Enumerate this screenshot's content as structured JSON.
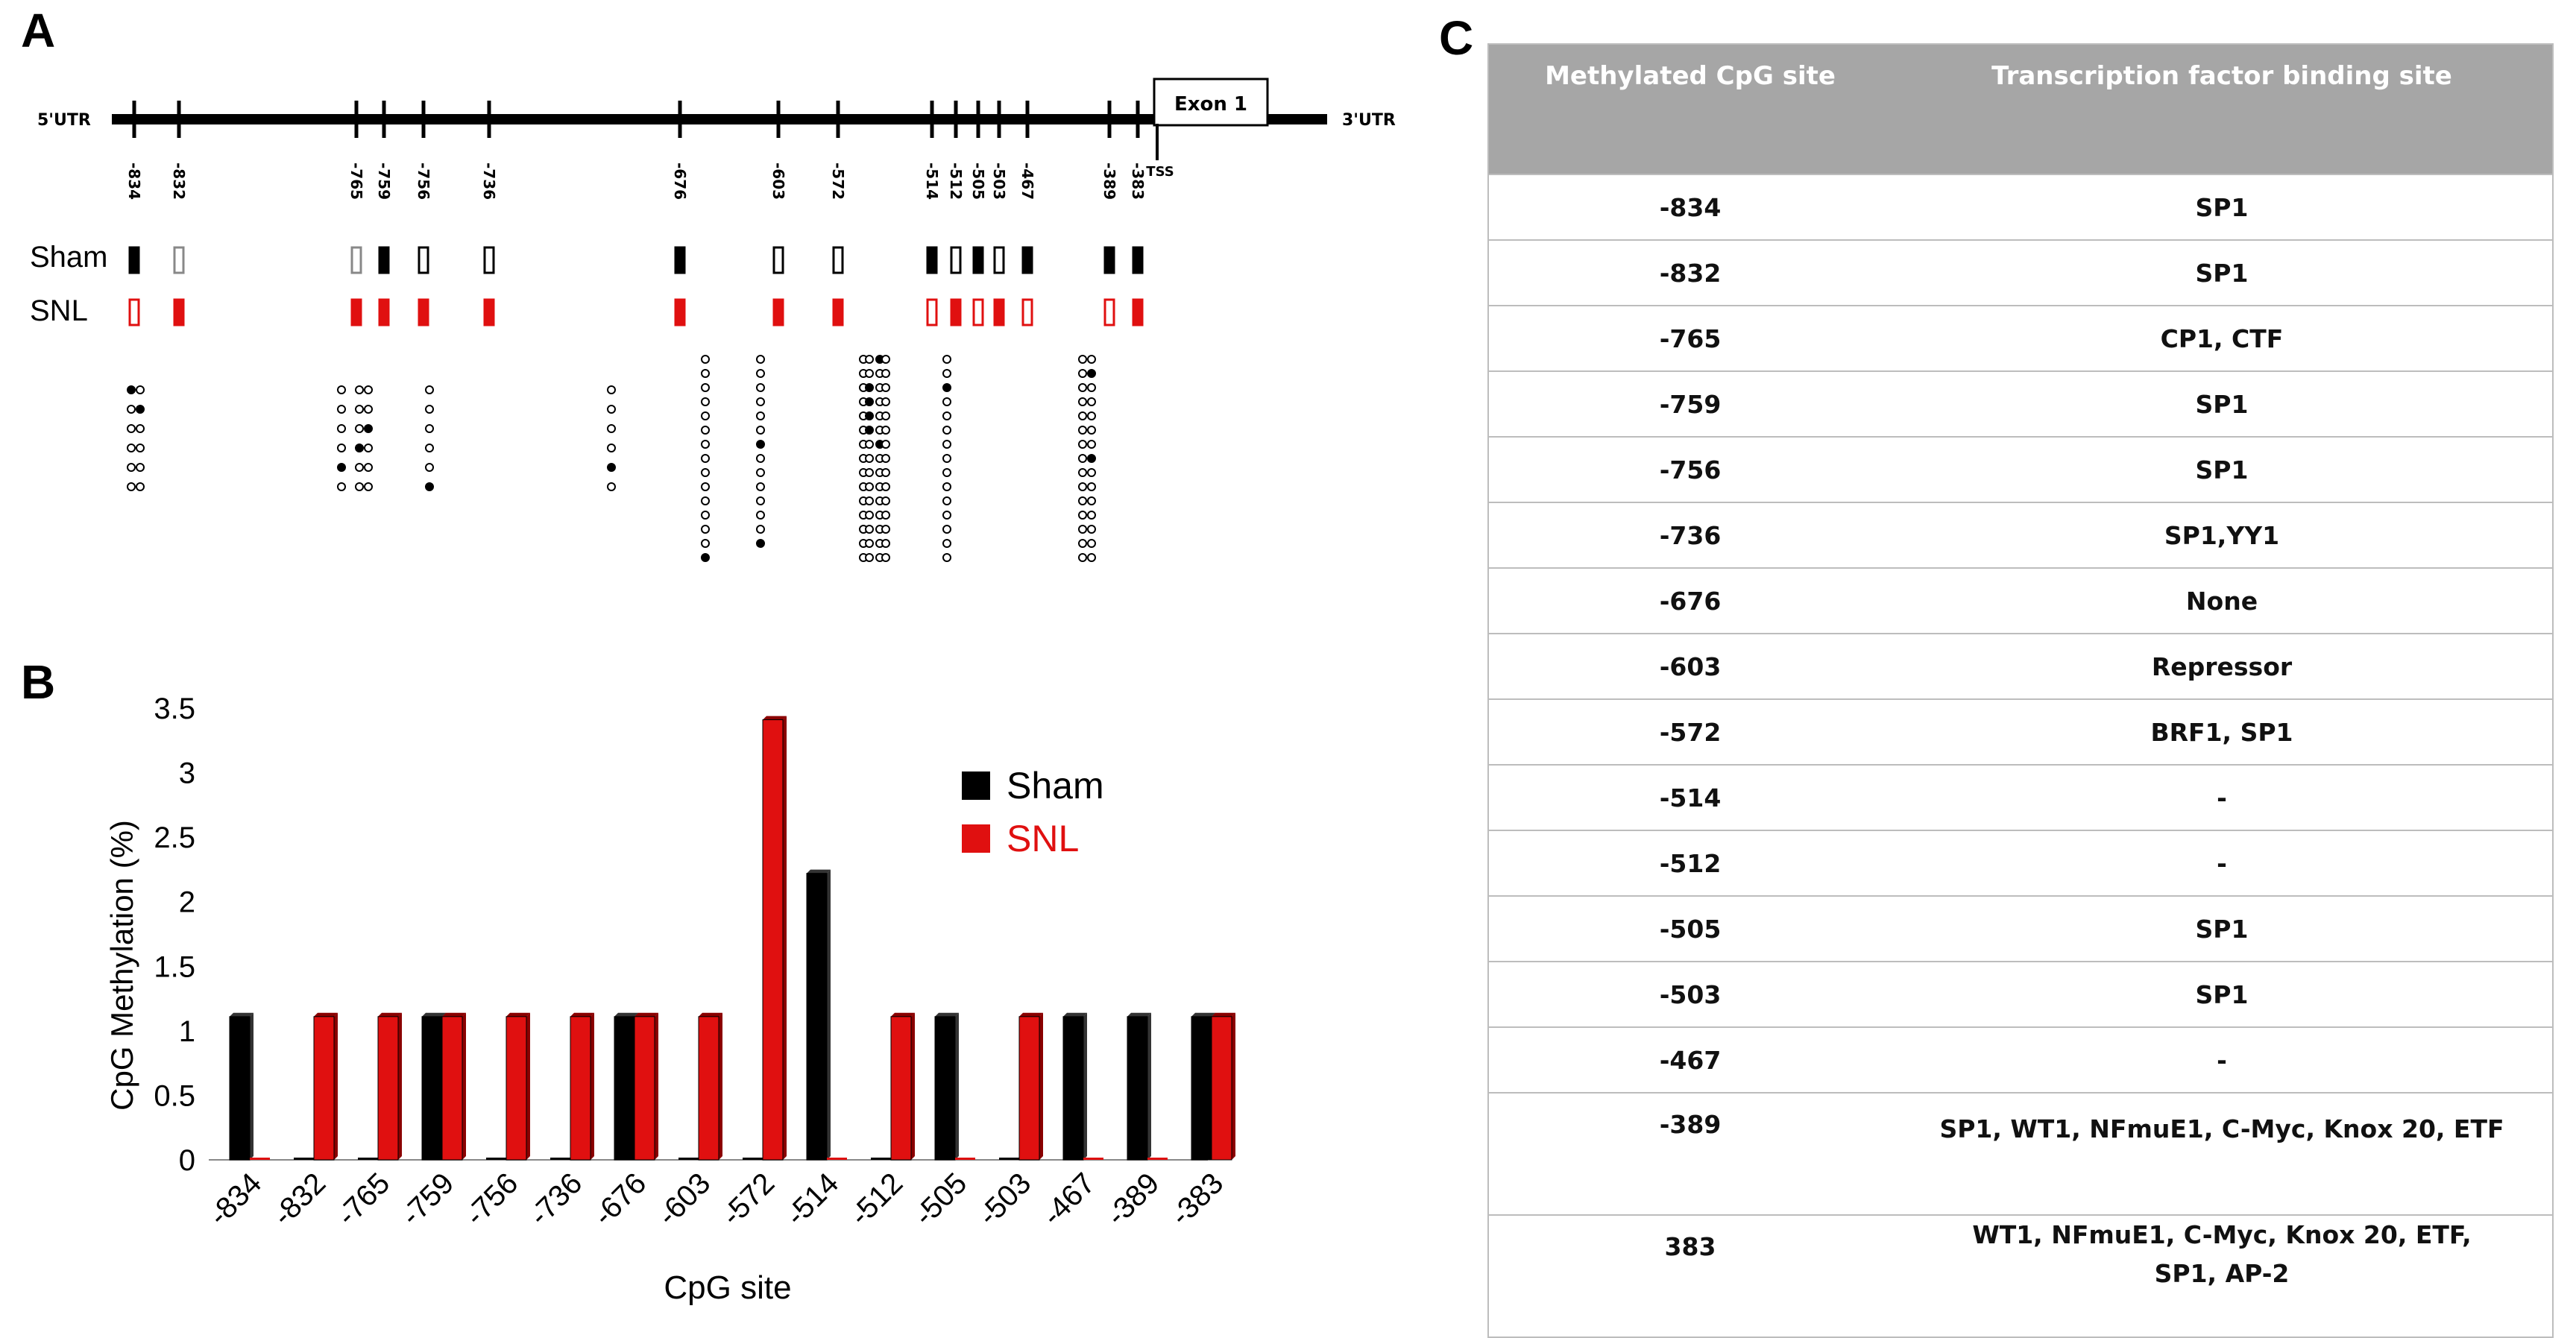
{
  "panels": {
    "a": "A",
    "b": "B",
    "c": "C"
  },
  "panel_a": {
    "label_5utr": "5'UTR",
    "label_3utr": "3'UTR",
    "exon_label": "Exon 1",
    "tss_label": "TSS",
    "row_labels": [
      "Sham",
      "SNL"
    ],
    "cpg_sites": [
      "-834",
      "-832",
      "-765",
      "-759",
      "-756",
      "-736",
      "-676",
      "-603",
      "-572",
      "-514",
      "-512",
      "-505",
      "-503",
      "-467",
      "-389",
      "-383"
    ],
    "sham_pattern": [
      "filled",
      "grey-open",
      "grey-open",
      "filled",
      "open",
      "open",
      "filled",
      "open",
      "open",
      "filled",
      "open",
      "filled",
      "open",
      "filled",
      "filled",
      "filled"
    ],
    "snl_pattern": [
      "red-open",
      "red-filled",
      "red-filled",
      "red-filled",
      "red-filled",
      "red-filled",
      "red-filled",
      "red-filled",
      "red-filled",
      "red-open",
      "red-filled",
      "red-open",
      "red-filled",
      "red-open",
      "red-open",
      "red-filled"
    ]
  },
  "chart_data": {
    "type": "bar",
    "title": "",
    "xlabel": "CpG site",
    "ylabel": "CpG Methylation (%)",
    "ylim": [
      0,
      3.5
    ],
    "yticks": [
      "0",
      "0.5",
      "1",
      "1.5",
      "2",
      "2.5",
      "3",
      "3.5"
    ],
    "categories": [
      "-834",
      "-832",
      "-765",
      "-759",
      "-756",
      "-736",
      "-676",
      "-603",
      "-572",
      "-514",
      "-512",
      "-505",
      "-503",
      "-467",
      "-389",
      "-383"
    ],
    "series": [
      {
        "name": "Sham",
        "color": "#000000",
        "values": [
          1.11,
          0,
          0,
          1.11,
          0,
          0,
          1.11,
          0,
          0,
          2.22,
          0,
          1.11,
          0,
          1.11,
          1.11,
          1.11
        ]
      },
      {
        "name": "SNL",
        "color": "#e01010",
        "values": [
          0,
          1.11,
          1.11,
          1.11,
          1.11,
          1.11,
          1.11,
          1.11,
          3.41,
          0,
          1.11,
          0,
          1.11,
          0,
          0,
          1.11
        ]
      }
    ],
    "legend_position": "top-right"
  },
  "table_c": {
    "headers": [
      "Methylated CpG site",
      "Transcription factor binding site"
    ],
    "rows": [
      {
        "site": "-834",
        "tf": "SP1"
      },
      {
        "site": "-832",
        "tf": "SP1"
      },
      {
        "site": "-765",
        "tf": "CP1, CTF"
      },
      {
        "site": "-759",
        "tf": "SP1"
      },
      {
        "site": "-756",
        "tf": "SP1"
      },
      {
        "site": "-736",
        "tf": "SP1,YY1"
      },
      {
        "site": "-676",
        "tf": "None"
      },
      {
        "site": "-603",
        "tf": "Repressor"
      },
      {
        "site": "-572",
        "tf": "BRF1, SP1"
      },
      {
        "site": "-514",
        "tf": "-"
      },
      {
        "site": "-512",
        "tf": "-"
      },
      {
        "site": "-505",
        "tf": "SP1"
      },
      {
        "site": "-503",
        "tf": "SP1"
      },
      {
        "site": "-467",
        "tf": "-"
      },
      {
        "site": "-389",
        "tf": "SP1, WT1, NFmuE1, C-Myc, Knox 20, ETF"
      },
      {
        "site": "383",
        "tf": "WT1, NFmuE1, C-Myc, Knox 20, ETF, SP1, AP-2"
      }
    ]
  }
}
